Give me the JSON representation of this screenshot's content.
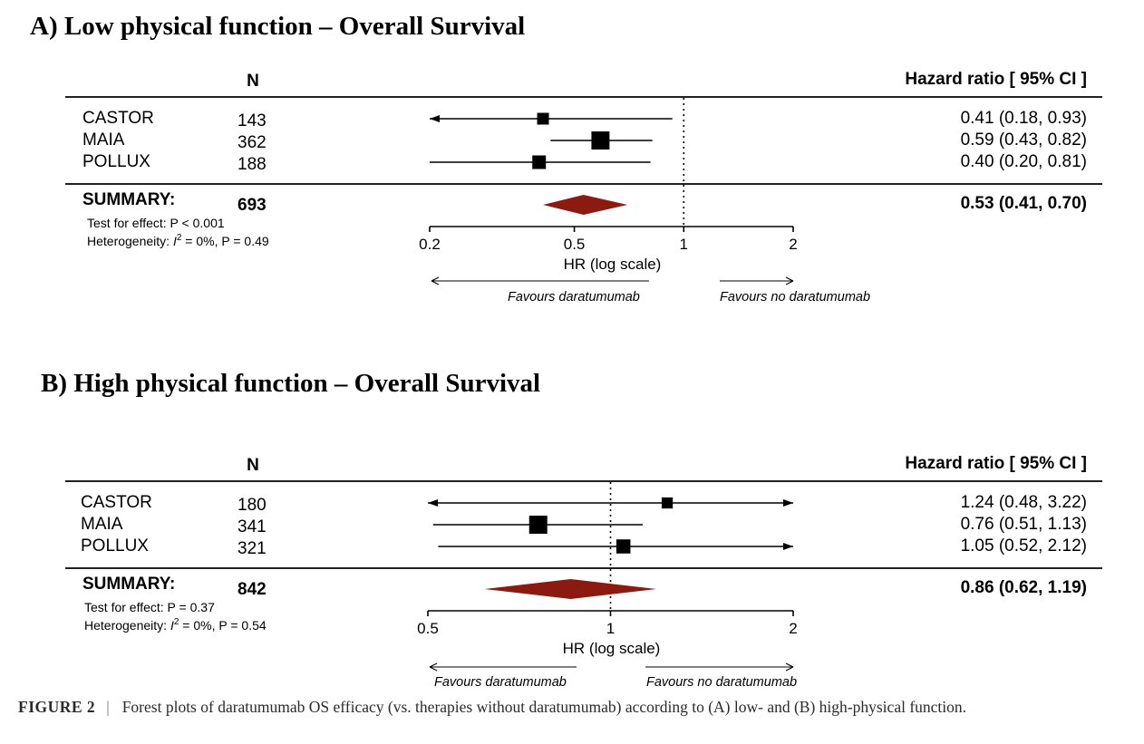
{
  "chart_data": [
    {
      "type": "forest",
      "title": "A) Low physical function – Overall Survival",
      "n_header": "N",
      "hr_header": "Hazard ratio [ 95% CI ]",
      "xlabel": "HR (log scale)",
      "x_scale": "log",
      "xlim": [
        0.2,
        2
      ],
      "xticks": [
        0.2,
        0.5,
        1,
        2
      ],
      "xtick_labels": [
        "0.2",
        "0.5",
        "1",
        "2"
      ],
      "reference_line": 1,
      "studies": [
        {
          "name": "CASTOR",
          "n": "143",
          "hr": 0.41,
          "lo": 0.18,
          "hi": 0.93,
          "label": "0.41 (0.18, 0.93)",
          "weight": 0.15
        },
        {
          "name": "MAIA",
          "n": "362",
          "hr": 0.59,
          "lo": 0.43,
          "hi": 0.82,
          "label": "0.59 (0.43, 0.82)",
          "weight": 0.6
        },
        {
          "name": "POLLUX",
          "n": "188",
          "hr": 0.4,
          "lo": 0.2,
          "hi": 0.81,
          "label": "0.40 (0.20, 0.81)",
          "weight": 0.25
        }
      ],
      "summary": {
        "name": "SUMMARY:",
        "n": "693",
        "hr": 0.53,
        "lo": 0.41,
        "hi": 0.7,
        "label": "0.53 (0.41, 0.70)"
      },
      "test_for_effect": "Test for effect: P < 0.001",
      "heterogeneity_prefix": "Heterogeneity: ",
      "heterogeneity_i": "I",
      "heterogeneity_sup": "2",
      "heterogeneity_rest": " = 0%, P = 0.49",
      "favours_left": "Favours daratumumab",
      "favours_right": "Favours no daratumumab"
    },
    {
      "type": "forest",
      "title": "B) High physical function – Overall Survival",
      "n_header": "N",
      "hr_header": "Hazard ratio [ 95% CI ]",
      "xlabel": "HR (log scale)",
      "x_scale": "log",
      "xlim": [
        0.5,
        2
      ],
      "xticks": [
        0.5,
        1,
        2
      ],
      "xtick_labels": [
        "0.5",
        "1",
        "2"
      ],
      "reference_line": 1,
      "studies": [
        {
          "name": "CASTOR",
          "n": "180",
          "hr": 1.24,
          "lo": 0.48,
          "hi": 3.22,
          "label": "1.24 (0.48, 3.22)",
          "weight": 0.12
        },
        {
          "name": "MAIA",
          "n": "341",
          "hr": 0.76,
          "lo": 0.51,
          "hi": 1.13,
          "label": "0.76 (0.51, 1.13)",
          "weight": 0.6
        },
        {
          "name": "POLLUX",
          "n": "321",
          "hr": 1.05,
          "lo": 0.52,
          "hi": 2.12,
          "label": "1.05 (0.52, 2.12)",
          "weight": 0.28
        }
      ],
      "summary": {
        "name": "SUMMARY:",
        "n": "842",
        "hr": 0.86,
        "lo": 0.62,
        "hi": 1.19,
        "label": "0.86 (0.62, 1.19)"
      },
      "test_for_effect": "Test for effect: P = 0.37",
      "heterogeneity_prefix": "Heterogeneity: ",
      "heterogeneity_i": "I",
      "heterogeneity_sup": "2",
      "heterogeneity_rest": " = 0%, P = 0.54",
      "favours_left": "Favours daratumumab",
      "favours_right": "Favours no daratumumab"
    }
  ],
  "caption": {
    "label": "FIGURE 2",
    "separator": "|",
    "text": "Forest plots of daratumumab OS efficacy (vs. therapies without daratumumab) according to (A) low- and (B) high-physical function."
  },
  "colors": {
    "summary_diamond": "#8b1a10",
    "ink": "#000000"
  }
}
